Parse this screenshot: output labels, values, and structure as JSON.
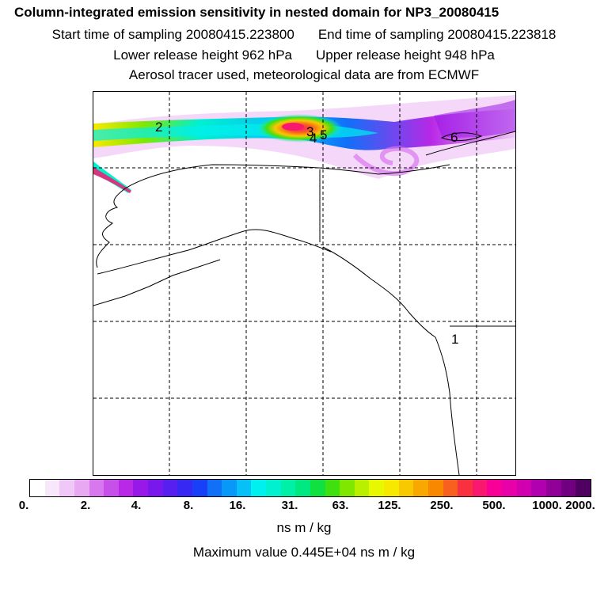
{
  "header": {
    "title": "Column-integrated emission sensitivity in nested domain for NP3_20080415",
    "start_time": "Start time of sampling 20080415.223800",
    "end_time": "End time of sampling 20080415.223818",
    "lower_height": "Lower release height  962 hPa",
    "upper_height": "Upper release height  948 hPa",
    "note": "Aerosol tracer used, meteorological data are from ECMWF"
  },
  "map": {
    "labels": [
      "2",
      "3",
      "4",
      "5",
      "6",
      "1"
    ]
  },
  "colorbar": {
    "ticks": [
      "0.",
      "2.",
      "4.",
      "8.",
      "16.",
      "31.",
      "63.",
      "125.",
      "250.",
      "500.",
      "1000.",
      "2000."
    ],
    "colors": [
      "#ffffff",
      "#f8e6fb",
      "#f0c8f7",
      "#e8a8f2",
      "#d878ee",
      "#c850ea",
      "#b828e6",
      "#9818e8",
      "#7818ec",
      "#5820f0",
      "#3828f4",
      "#1840f8",
      "#1070f8",
      "#0898f8",
      "#08c0f8",
      "#00f0f0",
      "#00f0d0",
      "#00f0a8",
      "#00e880",
      "#10e040",
      "#40e010",
      "#80e800",
      "#b8f000",
      "#e8f800",
      "#f8e800",
      "#f8c800",
      "#f8a800",
      "#f88800",
      "#f86020",
      "#f83040",
      "#f81870",
      "#f80098",
      "#e800a8",
      "#d000b0",
      "#b000b0",
      "#900098",
      "#700080",
      "#500060"
    ],
    "unit": "ns m / kg"
  },
  "footer": {
    "max_value": "Maximum value  0.445E+04 ns m / kg"
  }
}
